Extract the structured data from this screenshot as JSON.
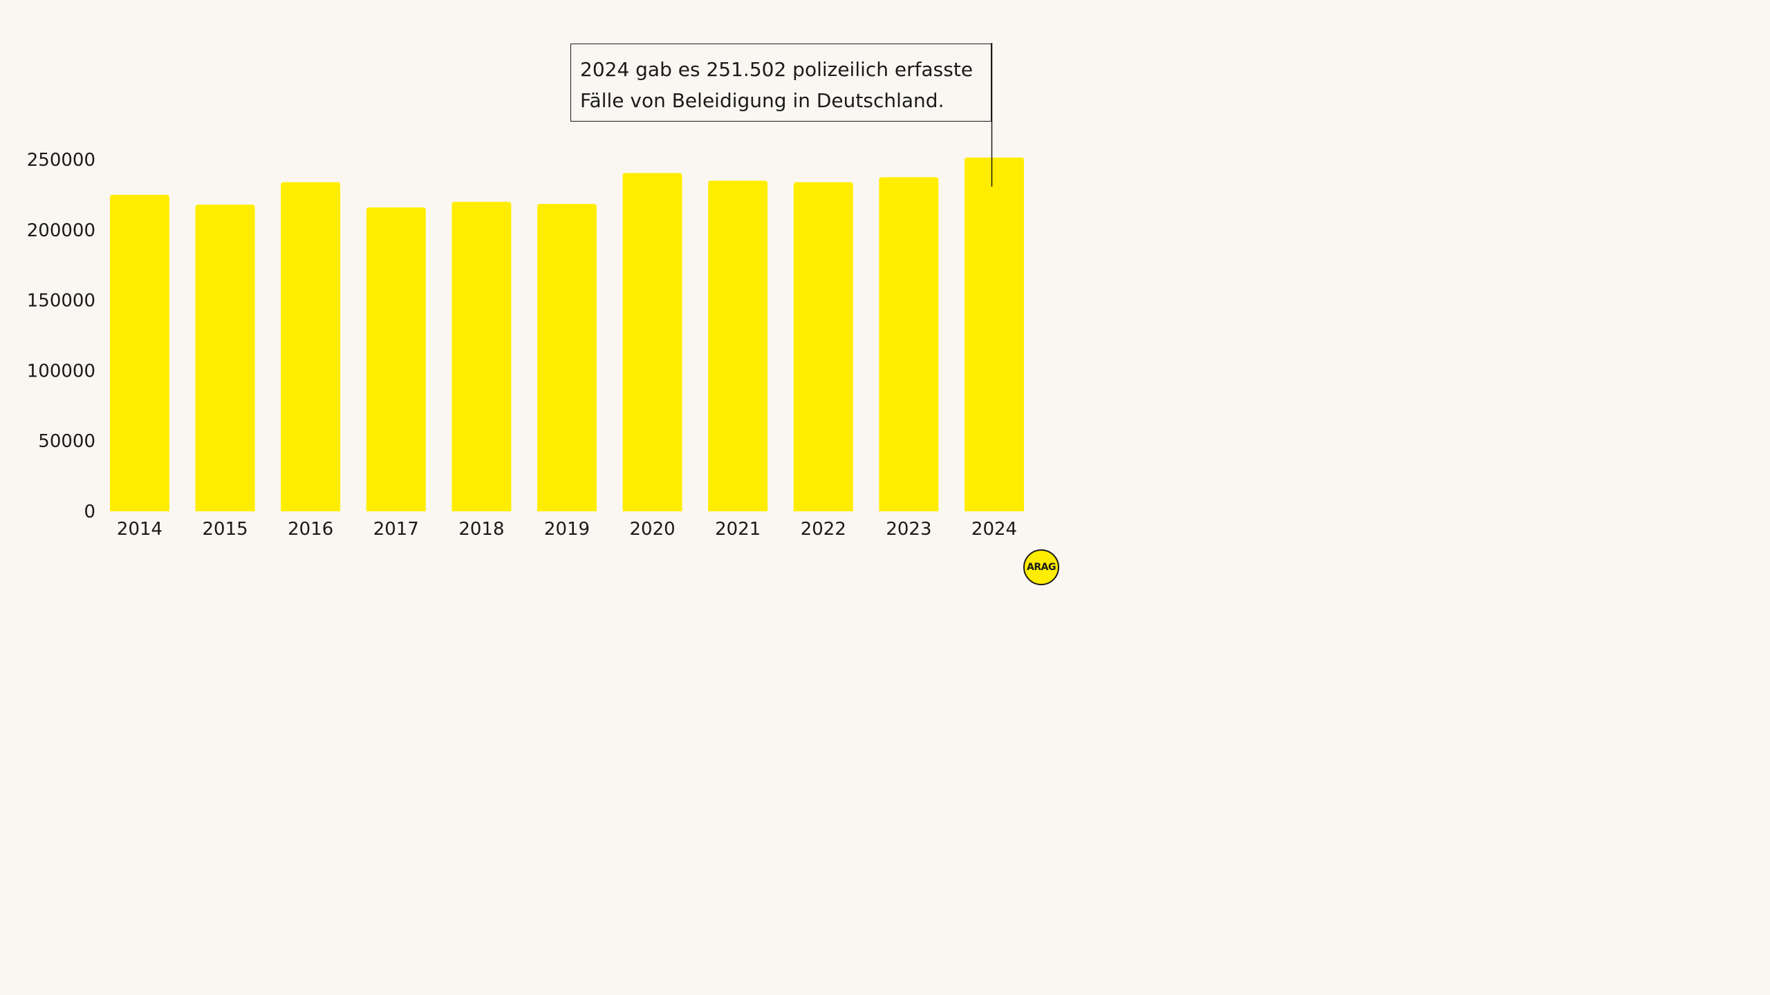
{
  "chart_data": {
    "type": "bar",
    "categories": [
      "2014",
      "2015",
      "2016",
      "2017",
      "2018",
      "2019",
      "2020",
      "2021",
      "2022",
      "2023",
      "2024"
    ],
    "values": [
      225000,
      218000,
      234000,
      216000,
      220000,
      218500,
      240500,
      235000,
      234000,
      237500,
      251502
    ],
    "yticks": [
      "0",
      "50000",
      "100000",
      "150000",
      "200000",
      "250000"
    ],
    "ylim": [
      0,
      250000
    ],
    "grid": false,
    "bar_color": "#ffed00",
    "annotation": {
      "category": "2024",
      "lines": [
        "2024 gab es 251.502 polizeilich erfasste",
        "Fälle von Beleidigung in Deutschland."
      ]
    }
  },
  "logo": {
    "text": "ARAG",
    "color": "#ffed00"
  },
  "colors": {
    "background": "#faf7f2",
    "text": "#1a1a1a"
  }
}
